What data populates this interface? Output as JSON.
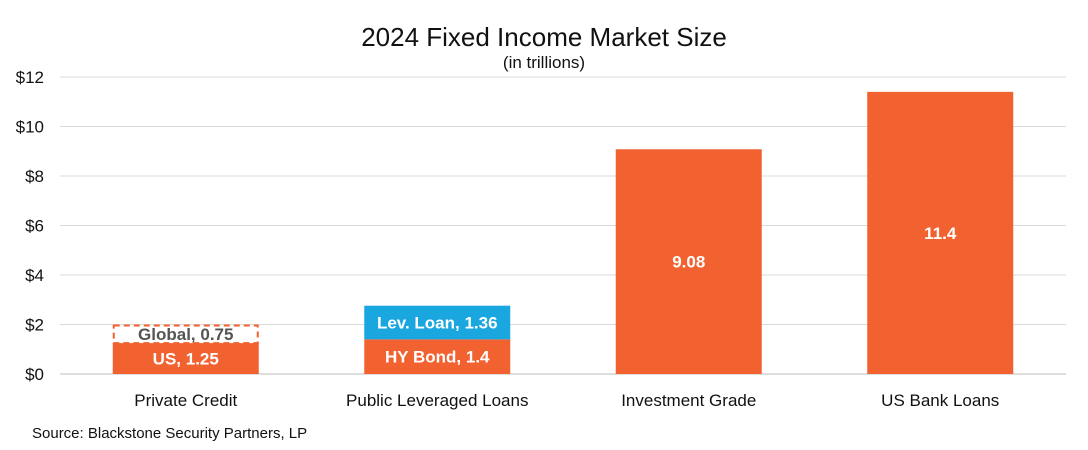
{
  "chart_data": {
    "type": "bar",
    "stacked": true,
    "title": "2024 Fixed Income Market Size",
    "subtitle": "(in trillions)",
    "xlabel": "",
    "ylabel": "",
    "ylim": [
      0,
      12
    ],
    "y_ticks": [
      "$0",
      "$2",
      "$4",
      "$6",
      "$8",
      "$10",
      "$12"
    ],
    "y_tick_values": [
      0,
      2,
      4,
      6,
      8,
      10,
      12
    ],
    "grid": true,
    "categories": [
      "Private Credit",
      "Public Leveraged Loans",
      "Investment Grade",
      "US Bank Loans"
    ],
    "segments": [
      [
        {
          "label": "US, 1.25",
          "value": 1.25,
          "color": "#f26130",
          "text_color": "#ffffff",
          "dashed": false
        },
        {
          "label": "Global, 0.75",
          "value": 0.75,
          "color": "#ffffff",
          "text_color": "#555555",
          "dashed": true,
          "border_color": "#f26130"
        }
      ],
      [
        {
          "label": "HY Bond, 1.4",
          "value": 1.4,
          "color": "#f26130",
          "text_color": "#ffffff",
          "dashed": false
        },
        {
          "label": "Lev. Loan, 1.36",
          "value": 1.36,
          "color": "#1aa7e0",
          "text_color": "#ffffff",
          "dashed": false
        }
      ],
      [
        {
          "label": "9.08",
          "value": 9.08,
          "color": "#f26130",
          "text_color": "#ffffff",
          "dashed": false
        }
      ],
      [
        {
          "label": "11.4",
          "value": 11.4,
          "color": "#f26130",
          "text_color": "#ffffff",
          "dashed": false
        }
      ]
    ]
  },
  "source": "Source: Blackstone Security Partners, LP"
}
